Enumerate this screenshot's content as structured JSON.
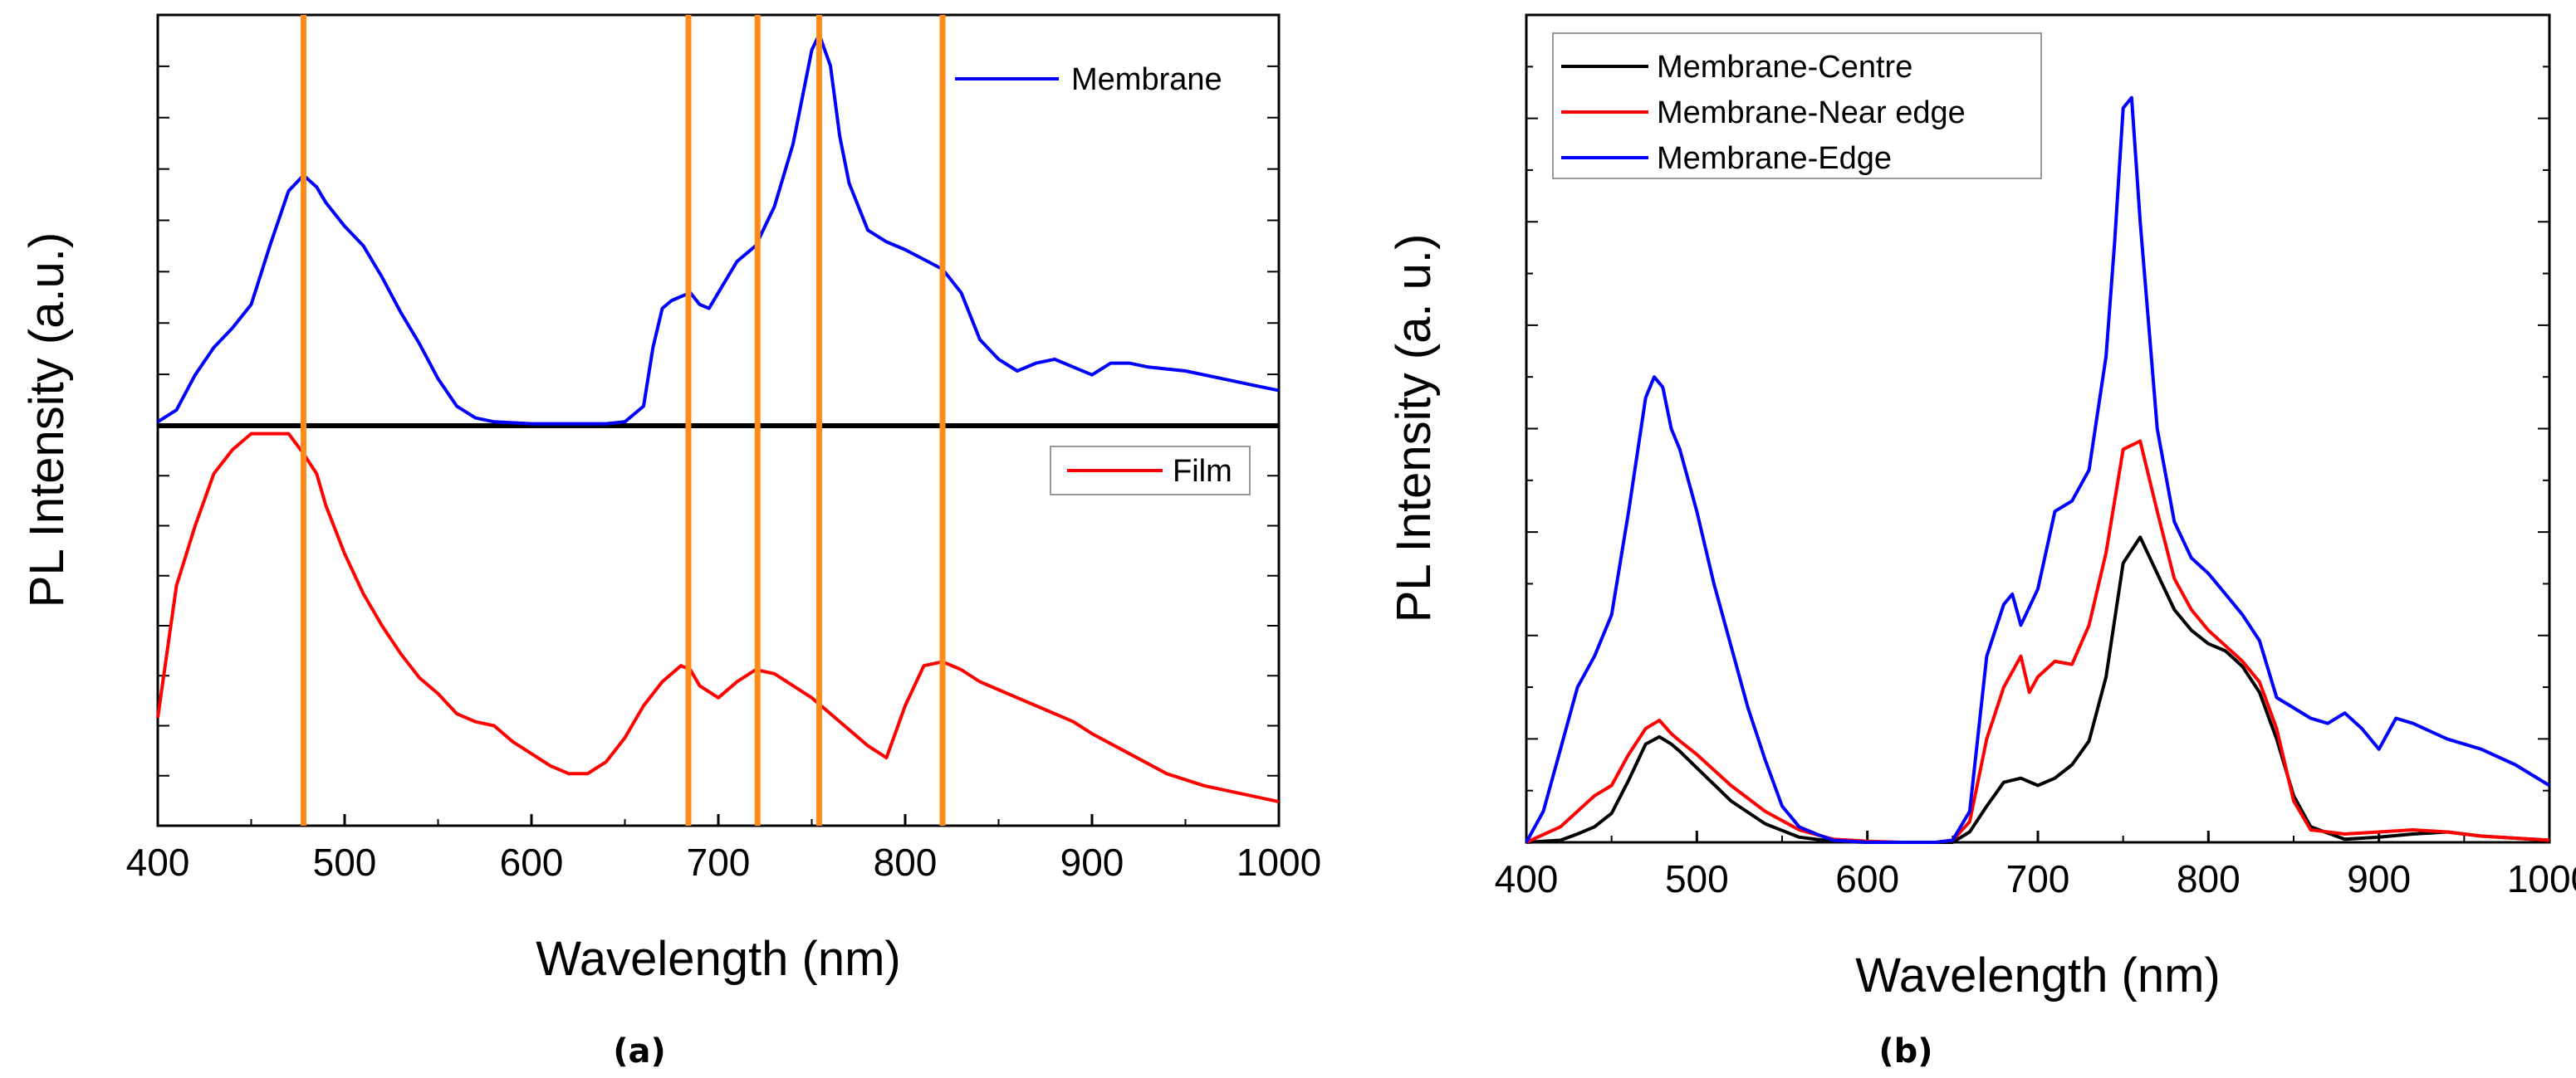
{
  "chart_data": [
    {
      "panel": "a",
      "type": "line",
      "caption": "(a)",
      "xlabel": "Wavelength (nm)",
      "ylabel": "PL Intensity (a.u.)",
      "xlim": [
        400,
        1000
      ],
      "xticks": [
        400,
        500,
        600,
        700,
        800,
        900,
        1000
      ],
      "vlines": [
        478,
        684,
        721,
        754,
        820
      ],
      "vline_color": "#ff8c1a",
      "subplots": [
        {
          "name": "top",
          "ylim": [
            0,
            1.05
          ],
          "legend": "top-right",
          "series": [
            {
              "name": "Membrane",
              "color": "#0000ff",
              "x": [
                400,
                410,
                420,
                430,
                440,
                450,
                460,
                470,
                478,
                485,
                490,
                500,
                510,
                520,
                530,
                540,
                550,
                560,
                570,
                580,
                600,
                620,
                640,
                650,
                660,
                665,
                670,
                675,
                680,
                685,
                690,
                695,
                700,
                710,
                720,
                730,
                740,
                750,
                754,
                760,
                765,
                770,
                780,
                790,
                800,
                820,
                830,
                840,
                850,
                860,
                870,
                880,
                890,
                900,
                910,
                920,
                930,
                950,
                970,
                990,
                1000
              ],
              "y": [
                0.01,
                0.04,
                0.13,
                0.2,
                0.25,
                0.31,
                0.46,
                0.6,
                0.64,
                0.61,
                0.57,
                0.51,
                0.46,
                0.38,
                0.29,
                0.21,
                0.12,
                0.05,
                0.02,
                0.01,
                0.005,
                0.005,
                0.005,
                0.01,
                0.05,
                0.2,
                0.3,
                0.32,
                0.33,
                0.34,
                0.31,
                0.3,
                0.34,
                0.42,
                0.46,
                0.56,
                0.72,
                0.96,
                1.0,
                0.92,
                0.74,
                0.62,
                0.5,
                0.47,
                0.45,
                0.4,
                0.34,
                0.22,
                0.17,
                0.14,
                0.16,
                0.17,
                0.15,
                0.13,
                0.16,
                0.16,
                0.15,
                0.14,
                0.12,
                0.1,
                0.09
              ]
            }
          ]
        },
        {
          "name": "bottom",
          "ylim": [
            0,
            1.0
          ],
          "legend": "top-right",
          "series": [
            {
              "name": "Film",
              "color": "#ff0000",
              "x": [
                400,
                410,
                420,
                430,
                440,
                450,
                460,
                470,
                478,
                485,
                490,
                500,
                510,
                520,
                530,
                540,
                550,
                560,
                570,
                580,
                590,
                600,
                610,
                620,
                630,
                640,
                650,
                660,
                670,
                680,
                685,
                690,
                700,
                710,
                720,
                730,
                740,
                750,
                760,
                770,
                780,
                790,
                800,
                810,
                820,
                830,
                840,
                850,
                860,
                870,
                880,
                890,
                900,
                920,
                940,
                960,
                980,
                1000
              ],
              "y": [
                0.27,
                0.6,
                0.75,
                0.88,
                0.94,
                0.98,
                0.98,
                0.98,
                0.93,
                0.88,
                0.8,
                0.68,
                0.58,
                0.5,
                0.43,
                0.37,
                0.33,
                0.28,
                0.26,
                0.25,
                0.21,
                0.18,
                0.15,
                0.13,
                0.13,
                0.16,
                0.22,
                0.3,
                0.36,
                0.4,
                0.39,
                0.35,
                0.32,
                0.36,
                0.39,
                0.38,
                0.35,
                0.32,
                0.28,
                0.24,
                0.2,
                0.17,
                0.3,
                0.4,
                0.41,
                0.39,
                0.36,
                0.34,
                0.32,
                0.3,
                0.28,
                0.26,
                0.23,
                0.18,
                0.13,
                0.1,
                0.08,
                0.06
              ]
            }
          ]
        }
      ]
    },
    {
      "panel": "b",
      "type": "line",
      "caption": "(b)",
      "xlabel": "Wavelength (nm)",
      "ylabel": "PL Intensity (a. u.)",
      "xlim": [
        400,
        1000
      ],
      "ylim": [
        0,
        8
      ],
      "xticks": [
        400,
        500,
        600,
        700,
        800,
        900,
        1000
      ],
      "legend": "top-left",
      "series": [
        {
          "name": "Membrane-Centre",
          "color": "#000000",
          "x": [
            400,
            420,
            430,
            440,
            450,
            460,
            470,
            478,
            485,
            490,
            500,
            520,
            540,
            560,
            580,
            600,
            620,
            640,
            650,
            660,
            670,
            680,
            690,
            700,
            710,
            720,
            730,
            740,
            750,
            760,
            770,
            780,
            790,
            800,
            810,
            820,
            830,
            840,
            850,
            860,
            880,
            900,
            920,
            940,
            960,
            980,
            1000
          ],
          "y": [
            0.0,
            0.02,
            0.08,
            0.15,
            0.28,
            0.6,
            0.95,
            1.02,
            0.95,
            0.88,
            0.72,
            0.4,
            0.18,
            0.05,
            0.01,
            0.0,
            0.0,
            0.0,
            0.0,
            0.1,
            0.35,
            0.58,
            0.62,
            0.55,
            0.62,
            0.75,
            0.98,
            1.6,
            2.7,
            2.95,
            2.6,
            2.25,
            2.05,
            1.92,
            1.85,
            1.7,
            1.45,
            1.0,
            0.45,
            0.15,
            0.03,
            0.05,
            0.08,
            0.1,
            0.06,
            0.04,
            0.02
          ]
        },
        {
          "name": "Membrane-Near edge",
          "color": "#ff0000",
          "x": [
            400,
            420,
            430,
            440,
            450,
            460,
            470,
            478,
            485,
            490,
            500,
            520,
            540,
            560,
            580,
            600,
            620,
            640,
            650,
            660,
            670,
            680,
            690,
            695,
            700,
            710,
            720,
            730,
            740,
            750,
            760,
            770,
            780,
            790,
            800,
            810,
            820,
            830,
            840,
            850,
            860,
            880,
            900,
            920,
            940,
            960,
            980,
            1000
          ],
          "y": [
            0.0,
            0.15,
            0.3,
            0.45,
            0.55,
            0.85,
            1.1,
            1.18,
            1.05,
            0.98,
            0.85,
            0.55,
            0.3,
            0.12,
            0.03,
            0.01,
            0.0,
            0.0,
            0.02,
            0.2,
            1.0,
            1.5,
            1.8,
            1.45,
            1.6,
            1.75,
            1.72,
            2.1,
            2.8,
            3.8,
            3.88,
            3.2,
            2.55,
            2.25,
            2.05,
            1.9,
            1.75,
            1.55,
            1.1,
            0.4,
            0.12,
            0.08,
            0.1,
            0.12,
            0.1,
            0.06,
            0.04,
            0.02
          ]
        },
        {
          "name": "Membrane-Edge",
          "color": "#0000ff",
          "x": [
            400,
            410,
            420,
            430,
            440,
            450,
            460,
            470,
            475,
            480,
            485,
            490,
            500,
            510,
            520,
            530,
            540,
            550,
            560,
            570,
            580,
            600,
            620,
            640,
            650,
            660,
            670,
            680,
            685,
            690,
            700,
            710,
            720,
            730,
            740,
            745,
            750,
            755,
            760,
            765,
            770,
            780,
            790,
            800,
            810,
            820,
            830,
            840,
            850,
            860,
            870,
            880,
            890,
            900,
            910,
            920,
            940,
            960,
            980,
            1000
          ],
          "y": [
            0.0,
            0.3,
            0.9,
            1.5,
            1.8,
            2.2,
            3.2,
            4.3,
            4.5,
            4.4,
            4.0,
            3.8,
            3.2,
            2.5,
            1.9,
            1.3,
            0.8,
            0.35,
            0.15,
            0.08,
            0.02,
            0.0,
            0.0,
            0.0,
            0.02,
            0.3,
            1.8,
            2.3,
            2.4,
            2.1,
            2.45,
            3.2,
            3.3,
            3.6,
            4.7,
            5.8,
            7.1,
            7.2,
            6.0,
            5.0,
            4.0,
            3.1,
            2.75,
            2.6,
            2.4,
            2.2,
            1.95,
            1.4,
            1.3,
            1.2,
            1.15,
            1.25,
            1.1,
            0.9,
            1.2,
            1.15,
            1.0,
            0.9,
            0.75,
            0.55
          ]
        }
      ]
    }
  ]
}
